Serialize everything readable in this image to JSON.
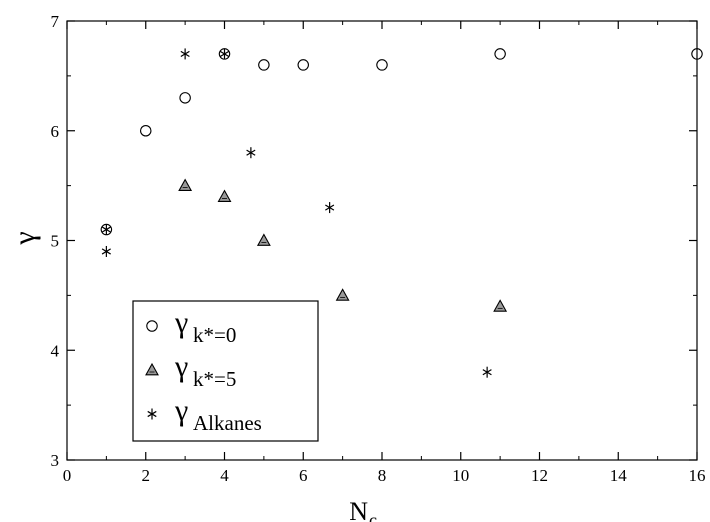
{
  "chart_data": {
    "type": "scatter",
    "xlabel": "N",
    "xlabel_sub": "c",
    "ylabel": "γ",
    "xlim": [
      0,
      16
    ],
    "ylim": [
      3,
      7
    ],
    "xticks": [
      0,
      2,
      4,
      6,
      8,
      10,
      12,
      14,
      16
    ],
    "yticks": [
      3,
      4,
      5,
      6,
      7
    ],
    "grid": false,
    "legend_position": "bottom-left",
    "series": [
      {
        "name": "γ",
        "name_sub": "k*=0",
        "marker": "circle",
        "points": [
          [
            1,
            5.1
          ],
          [
            2,
            6.0
          ],
          [
            3,
            6.3
          ],
          [
            4,
            6.7
          ],
          [
            5,
            6.6
          ],
          [
            6,
            6.6
          ],
          [
            8,
            6.6
          ],
          [
            11,
            6.7
          ],
          [
            16,
            6.7
          ]
        ]
      },
      {
        "name": "γ",
        "name_sub": "k*=5",
        "marker": "triangle",
        "points": [
          [
            3,
            5.5
          ],
          [
            4,
            5.4
          ],
          [
            5,
            5.0
          ],
          [
            7,
            4.5
          ],
          [
            11,
            4.4
          ]
        ]
      },
      {
        "name": "γ",
        "name_sub": "Alkanes",
        "marker": "asterisk",
        "points": [
          [
            1,
            4.9
          ],
          [
            1,
            5.1
          ],
          [
            3,
            6.7
          ],
          [
            4,
            6.7
          ],
          [
            4.67,
            5.8
          ],
          [
            6.67,
            5.3
          ],
          [
            10.67,
            3.8
          ]
        ]
      }
    ]
  }
}
